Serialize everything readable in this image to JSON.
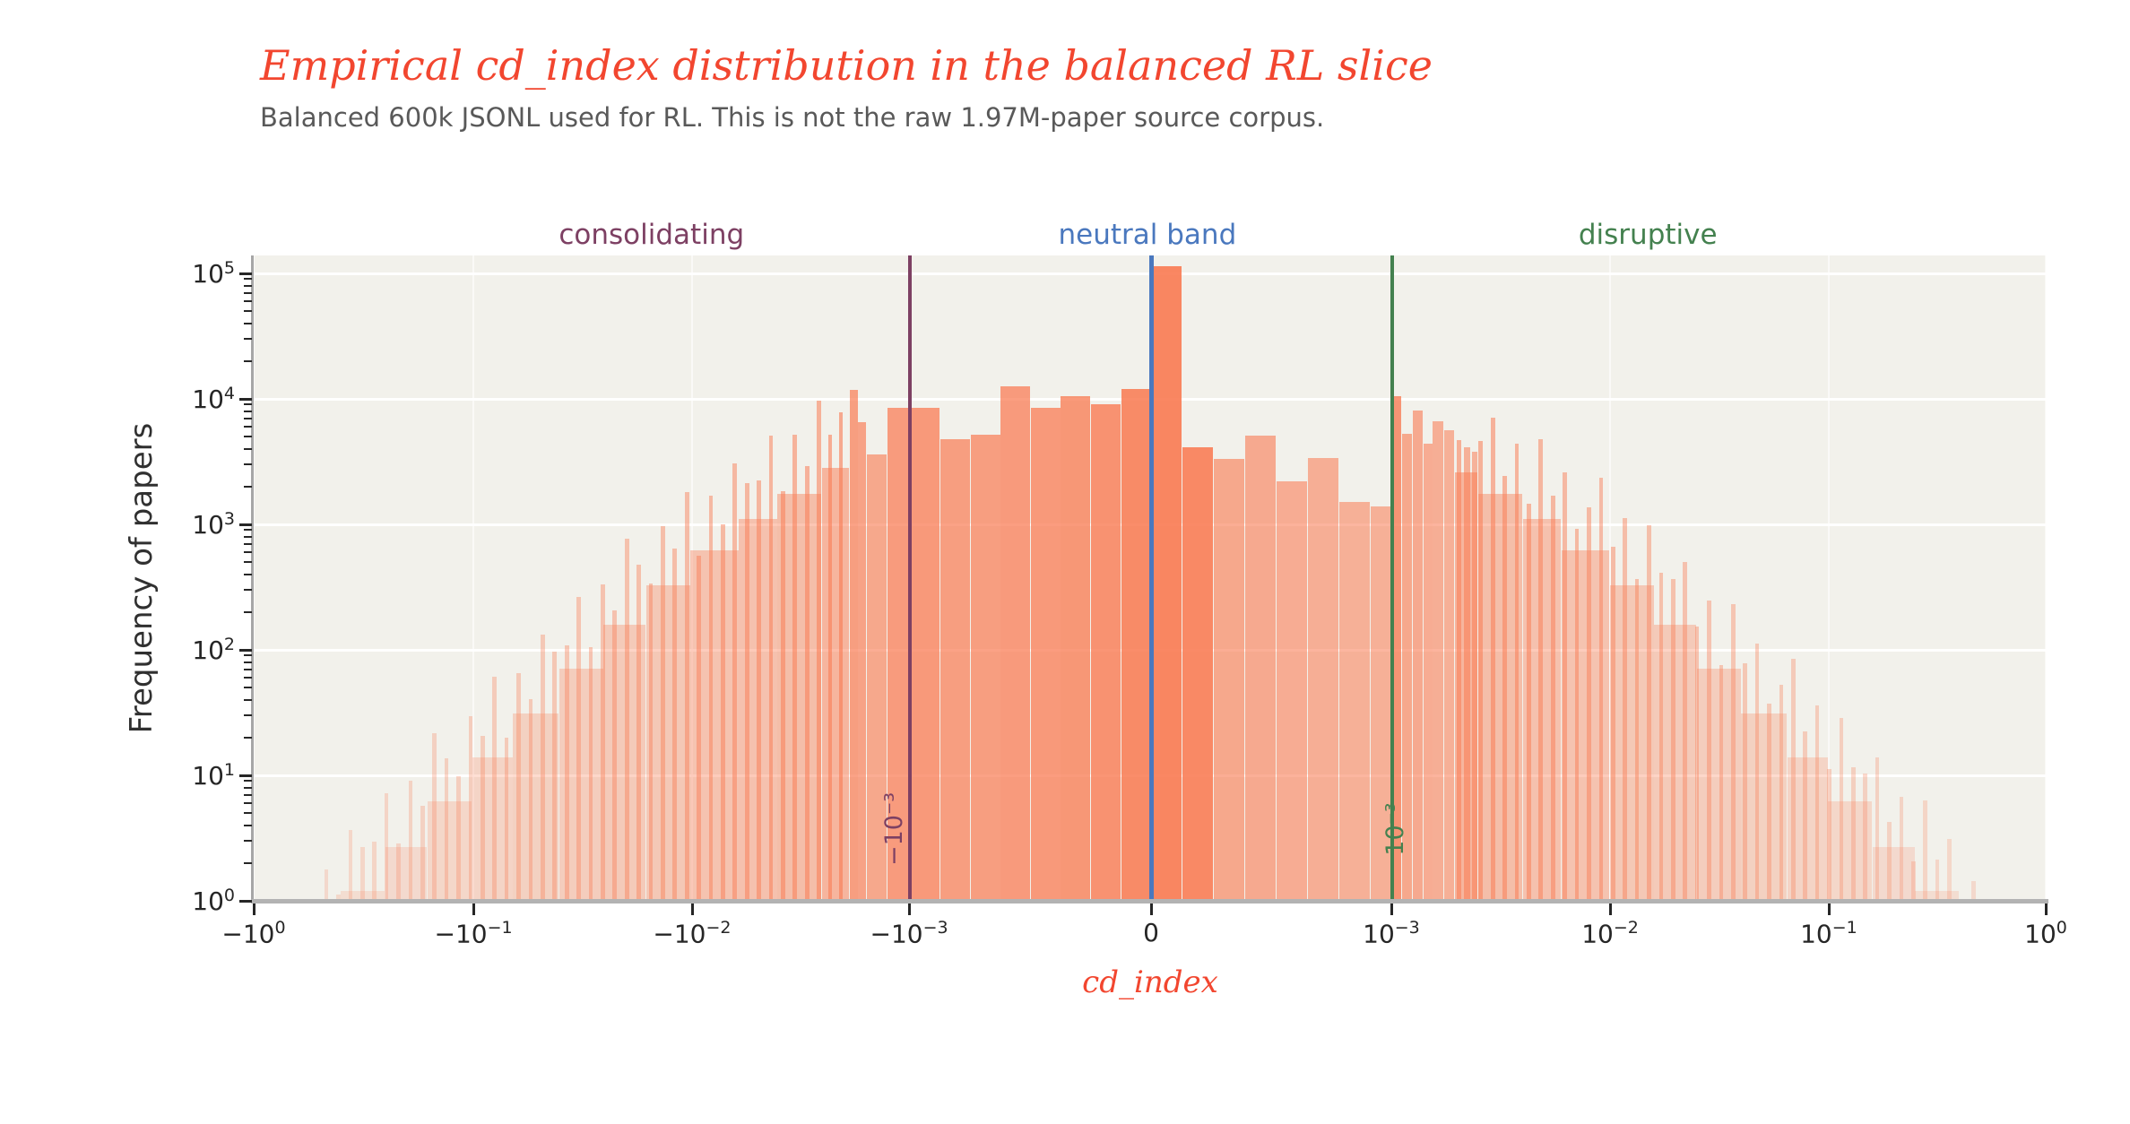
{
  "header": {
    "title": "Empirical cd_index distribution in the balanced RL slice",
    "subtitle": "Balanced 600k JSONL used for RL. This is not the raw 1.97M-paper source corpus.",
    "title_color": "#f2462f",
    "subtitle_color": "#595959"
  },
  "axes": {
    "x_label": "cd_index",
    "x_label_color": "#f2462f",
    "y_label": "Frequency of papers",
    "x_ticks": [
      {
        "b": "−10",
        "e": "0",
        "f": 0.0
      },
      {
        "b": "−10",
        "e": "−1",
        "f": 0.1226
      },
      {
        "b": "−10",
        "e": "−2",
        "f": 0.2446
      },
      {
        "b": "−10",
        "e": "−3",
        "f": 0.3657
      },
      {
        "b": "0",
        "e": "",
        "f": 0.5008
      },
      {
        "b": "10",
        "e": "−3",
        "f": 0.6348
      },
      {
        "b": "10",
        "e": "−2",
        "f": 0.7569
      },
      {
        "b": "10",
        "e": "−1",
        "f": 0.8789
      },
      {
        "b": "10",
        "e": "0",
        "f": 1.0
      }
    ],
    "y_ticks": [
      {
        "b": "10",
        "e": "0",
        "d": 0
      },
      {
        "b": "10",
        "e": "1",
        "d": 1
      },
      {
        "b": "10",
        "e": "2",
        "d": 2
      },
      {
        "b": "10",
        "e": "3",
        "d": 3
      },
      {
        "b": "10",
        "e": "4",
        "d": 4
      },
      {
        "b": "10",
        "e": "5",
        "d": 5
      }
    ]
  },
  "regions": [
    {
      "label": "consolidating",
      "color": "#7d4063",
      "f": 0.222
    },
    {
      "label": "neutral band",
      "color": "#4a78be",
      "f": 0.4987
    },
    {
      "label": "disruptive",
      "color": "#44814f",
      "f": 0.778
    }
  ],
  "ref_lines": [
    {
      "u": -0.001,
      "label": "−10⁻³",
      "color": "#7d4063",
      "label_side": "left"
    },
    {
      "u": 0.0,
      "label": "",
      "color": "#4a78be",
      "label_side": "none"
    },
    {
      "u": 0.001,
      "label": "10⁻³",
      "color": "#44814f",
      "label_side": "center"
    }
  ],
  "chart_data": {
    "type": "bar",
    "subtype": "histogram",
    "title": "Empirical cd_index distribution in the balanced RL slice",
    "xlabel": "cd_index",
    "ylabel": "Frequency of papers",
    "xscale": "symlog",
    "linthresh": 0.001,
    "xlim": [
      -1,
      1
    ],
    "yscale": "log",
    "ylim": [
      1,
      139000
    ],
    "grid": true,
    "x_tick_values": [
      -1,
      -0.1,
      -0.01,
      -0.001,
      0,
      0.001,
      0.01,
      0.1,
      1
    ],
    "y_tick_values": [
      1,
      10,
      100,
      1000,
      10000,
      100000
    ],
    "bar_color": "#f97a52",
    "peak": {
      "x_range": [
        0,
        0.00013
      ],
      "count": 115000
    },
    "region_thresholds": {
      "consolidating_below": -0.001,
      "neutral_band": [
        -0.001,
        0.001
      ],
      "disruptive_above": 0.001
    },
    "bars_linear": [
      [
        -0.001,
        -0.000875,
        8500,
        0.74
      ],
      [
        -0.000875,
        -0.00075,
        4800,
        0.7
      ],
      [
        -0.00075,
        -0.000625,
        5200,
        0.7
      ],
      [
        -0.000625,
        -0.0005,
        12500,
        0.73
      ],
      [
        -0.0005,
        -0.000375,
        8500,
        0.74
      ],
      [
        -0.000375,
        -0.00025,
        10500,
        0.76
      ],
      [
        -0.00025,
        -0.000125,
        9000,
        0.8
      ],
      [
        -0.000125,
        0,
        12000,
        0.86
      ],
      [
        0,
        0.00013,
        115000,
        0.9
      ],
      [
        0.00013,
        0.00026,
        4100,
        0.88
      ],
      [
        0.00026,
        0.00039,
        3300,
        0.62
      ],
      [
        0.00039,
        0.00052,
        5100,
        0.6
      ],
      [
        0.00052,
        0.00065,
        2200,
        0.58
      ],
      [
        0.00065,
        0.00078,
        3400,
        0.56
      ],
      [
        0.00078,
        0.00091,
        1500,
        0.55
      ],
      [
        0.00091,
        0.001,
        1400,
        0.55
      ]
    ],
    "bars_log": [
      [
        -0.0025,
        -0.00187,
        2800,
        0.5
      ],
      [
        -0.00235,
        -0.00225,
        5200,
        0.58
      ],
      [
        -0.0021,
        -0.002,
        7800,
        0.6
      ],
      [
        -0.00187,
        -0.00171,
        11800,
        0.7
      ],
      [
        -0.00171,
        -0.00156,
        6500,
        0.66
      ],
      [
        -0.00156,
        -0.00126,
        3600,
        0.62
      ],
      [
        -0.00126,
        -0.001,
        8500,
        0.72
      ],
      [
        0.001,
        0.00112,
        10500,
        0.78
      ],
      [
        0.00112,
        0.00125,
        5300,
        0.62
      ],
      [
        0.00125,
        0.0014,
        8100,
        0.6
      ],
      [
        0.0014,
        0.00155,
        4400,
        0.58
      ],
      [
        0.00155,
        0.00175,
        6600,
        0.56
      ],
      [
        0.00175,
        0.00195,
        5600,
        0.55
      ],
      [
        0.00195,
        0.0025,
        2600,
        0.5
      ],
      [
        0.002,
        0.0021,
        4700,
        0.55
      ],
      [
        0.00215,
        0.0023,
        4100,
        0.54
      ],
      [
        0.00235,
        0.0025,
        3800,
        0.53
      ]
    ],
    "tail_envelope": [
      [
        0.001,
        10500
      ],
      [
        0.0013,
        7000
      ],
      [
        0.0019,
        5600
      ],
      [
        0.0025,
        4700
      ],
      [
        0.004,
        3200
      ],
      [
        0.006,
        1900
      ],
      [
        0.01,
        1000
      ],
      [
        0.016,
        520
      ],
      [
        0.025,
        240
      ],
      [
        0.04,
        105
      ],
      [
        0.065,
        45
      ],
      [
        0.1,
        21
      ],
      [
        0.16,
        9
      ],
      [
        0.25,
        4
      ],
      [
        0.4,
        1.8
      ],
      [
        0.5,
        1.2
      ]
    ],
    "comb": {
      "t0": 0.4,
      "t1": 2.66,
      "dt": 0.055,
      "wt": 0.022,
      "jitter": [
        1.0,
        1.7,
        0.65,
        1.3,
        0.5,
        1.9,
        0.8,
        1.45,
        0.6,
        1.05,
        2.1,
        0.7,
        1.4,
        0.55,
        1.75,
        0.9
      ]
    }
  }
}
